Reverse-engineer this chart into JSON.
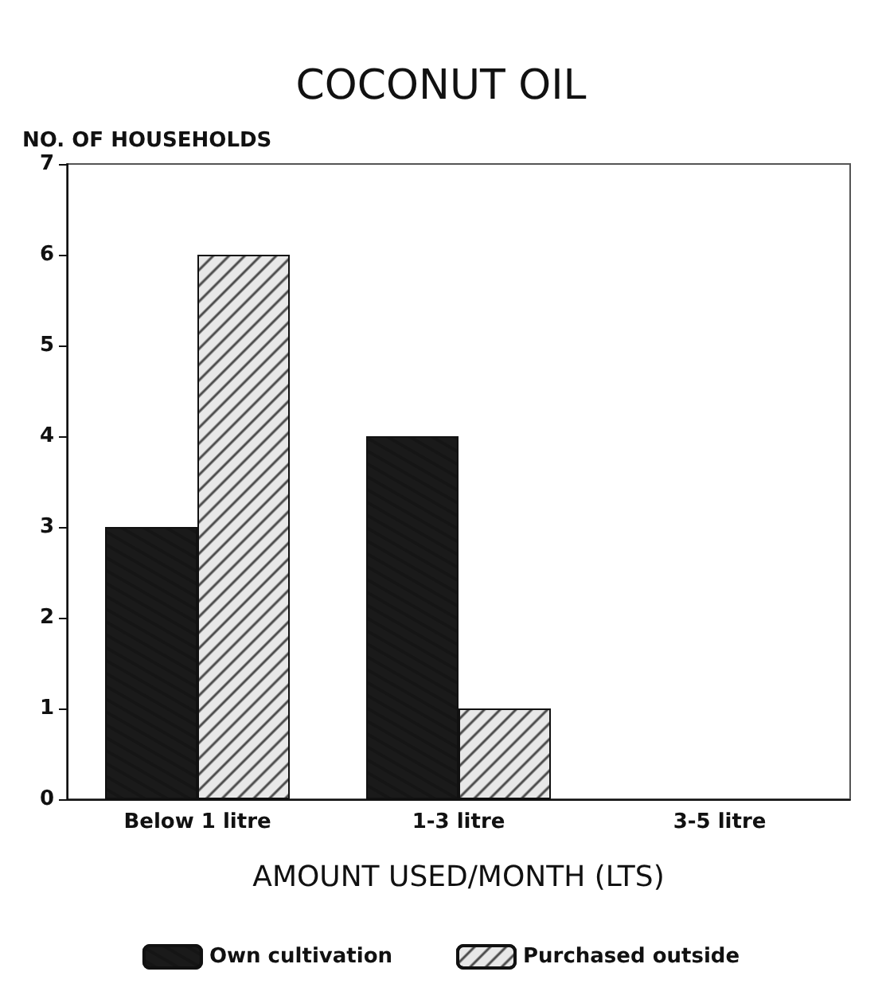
{
  "chart_data": {
    "type": "bar",
    "title": "COCONUT OIL",
    "xlabel": "AMOUNT USED/MONTH (LTS)",
    "ylabel": "NO. OF HOUSEHOLDS",
    "categories": [
      "Below 1 litre",
      "1-3 litre",
      "3-5 litre"
    ],
    "series": [
      {
        "name": "Own cultivation",
        "color": "#1a1a1a",
        "values": [
          3,
          4,
          0
        ]
      },
      {
        "name": "Purchased outside",
        "color": "#e8e8e8",
        "values": [
          6,
          1,
          0
        ]
      }
    ],
    "ylim": [
      0,
      7
    ],
    "yticks": [
      0,
      1,
      2,
      3,
      4,
      5,
      6,
      7
    ],
    "grid": false,
    "legend": "bottom"
  }
}
